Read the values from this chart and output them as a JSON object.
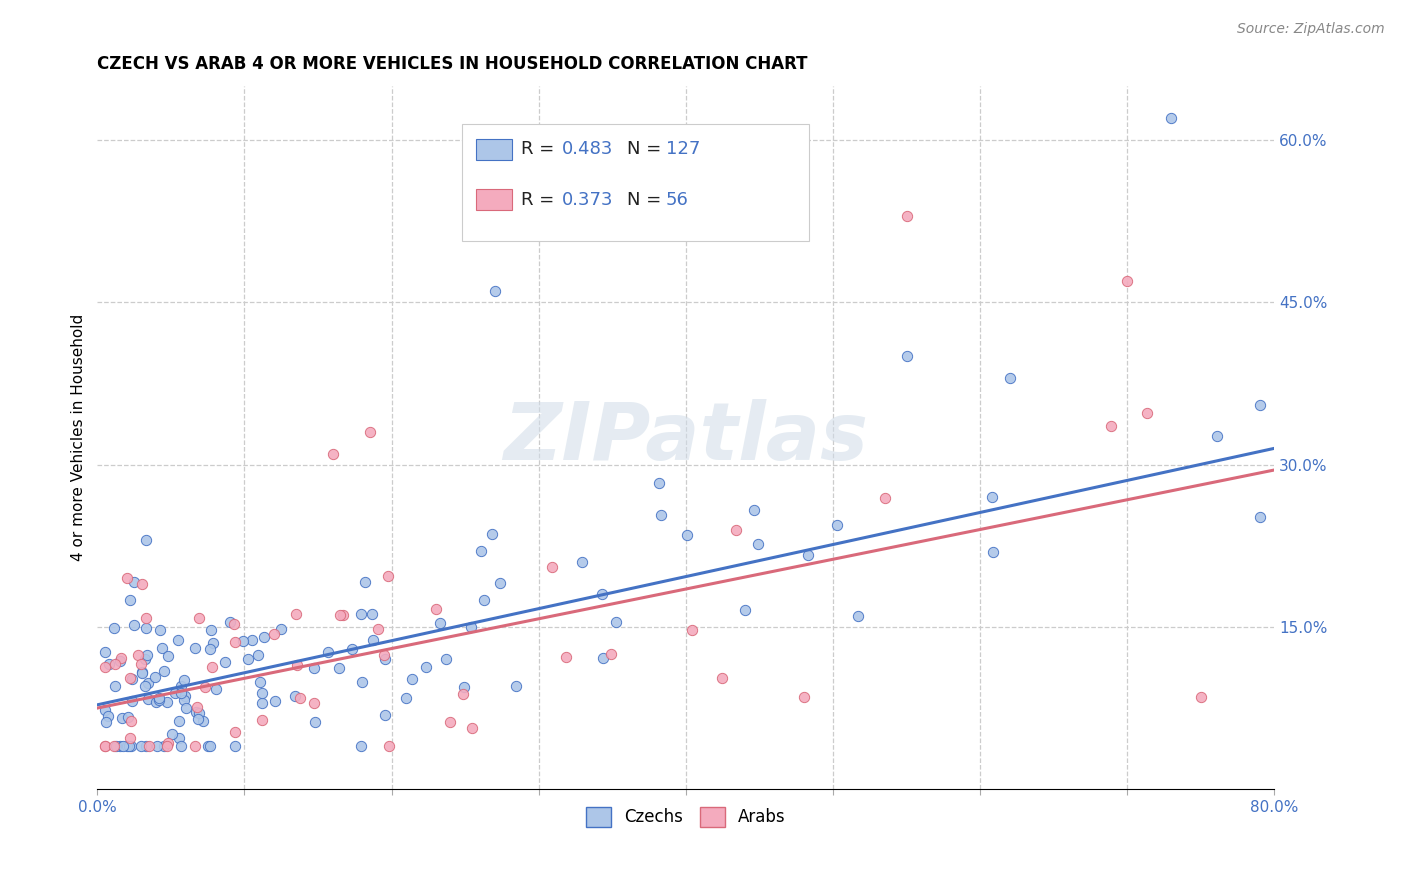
{
  "title": "CZECH VS ARAB 4 OR MORE VEHICLES IN HOUSEHOLD CORRELATION CHART",
  "source_text": "Source: ZipAtlas.com",
  "ylabel": "4 or more Vehicles in Household",
  "xlim": [
    0.0,
    0.8
  ],
  "ylim": [
    0.0,
    0.65
  ],
  "xtick_positions": [
    0.0,
    0.1,
    0.2,
    0.3,
    0.4,
    0.5,
    0.6,
    0.7,
    0.8
  ],
  "xticklabels": [
    "0.0%",
    "",
    "",
    "",
    "",
    "",
    "",
    "",
    "80.0%"
  ],
  "ytick_positions": [
    0.0,
    0.15,
    0.3,
    0.45,
    0.6
  ],
  "yticklabels_right": [
    "",
    "15.0%",
    "30.0%",
    "45.0%",
    "60.0%"
  ],
  "legend_R_czech": "0.483",
  "legend_N_czech": "127",
  "legend_R_arab": "0.373",
  "legend_N_arab": "56",
  "czech_color": "#adc6e8",
  "arab_color": "#f4abbe",
  "line_czech_color": "#4472c4",
  "line_arab_color": "#d9697a",
  "watermark_text": "ZIPatlas",
  "title_fontsize": 12,
  "tick_fontsize": 11,
  "ylabel_fontsize": 11,
  "source_fontsize": 10,
  "czech_line_start_y": 0.078,
  "czech_line_end_y": 0.315,
  "arab_line_start_y": 0.075,
  "arab_line_end_y": 0.295
}
